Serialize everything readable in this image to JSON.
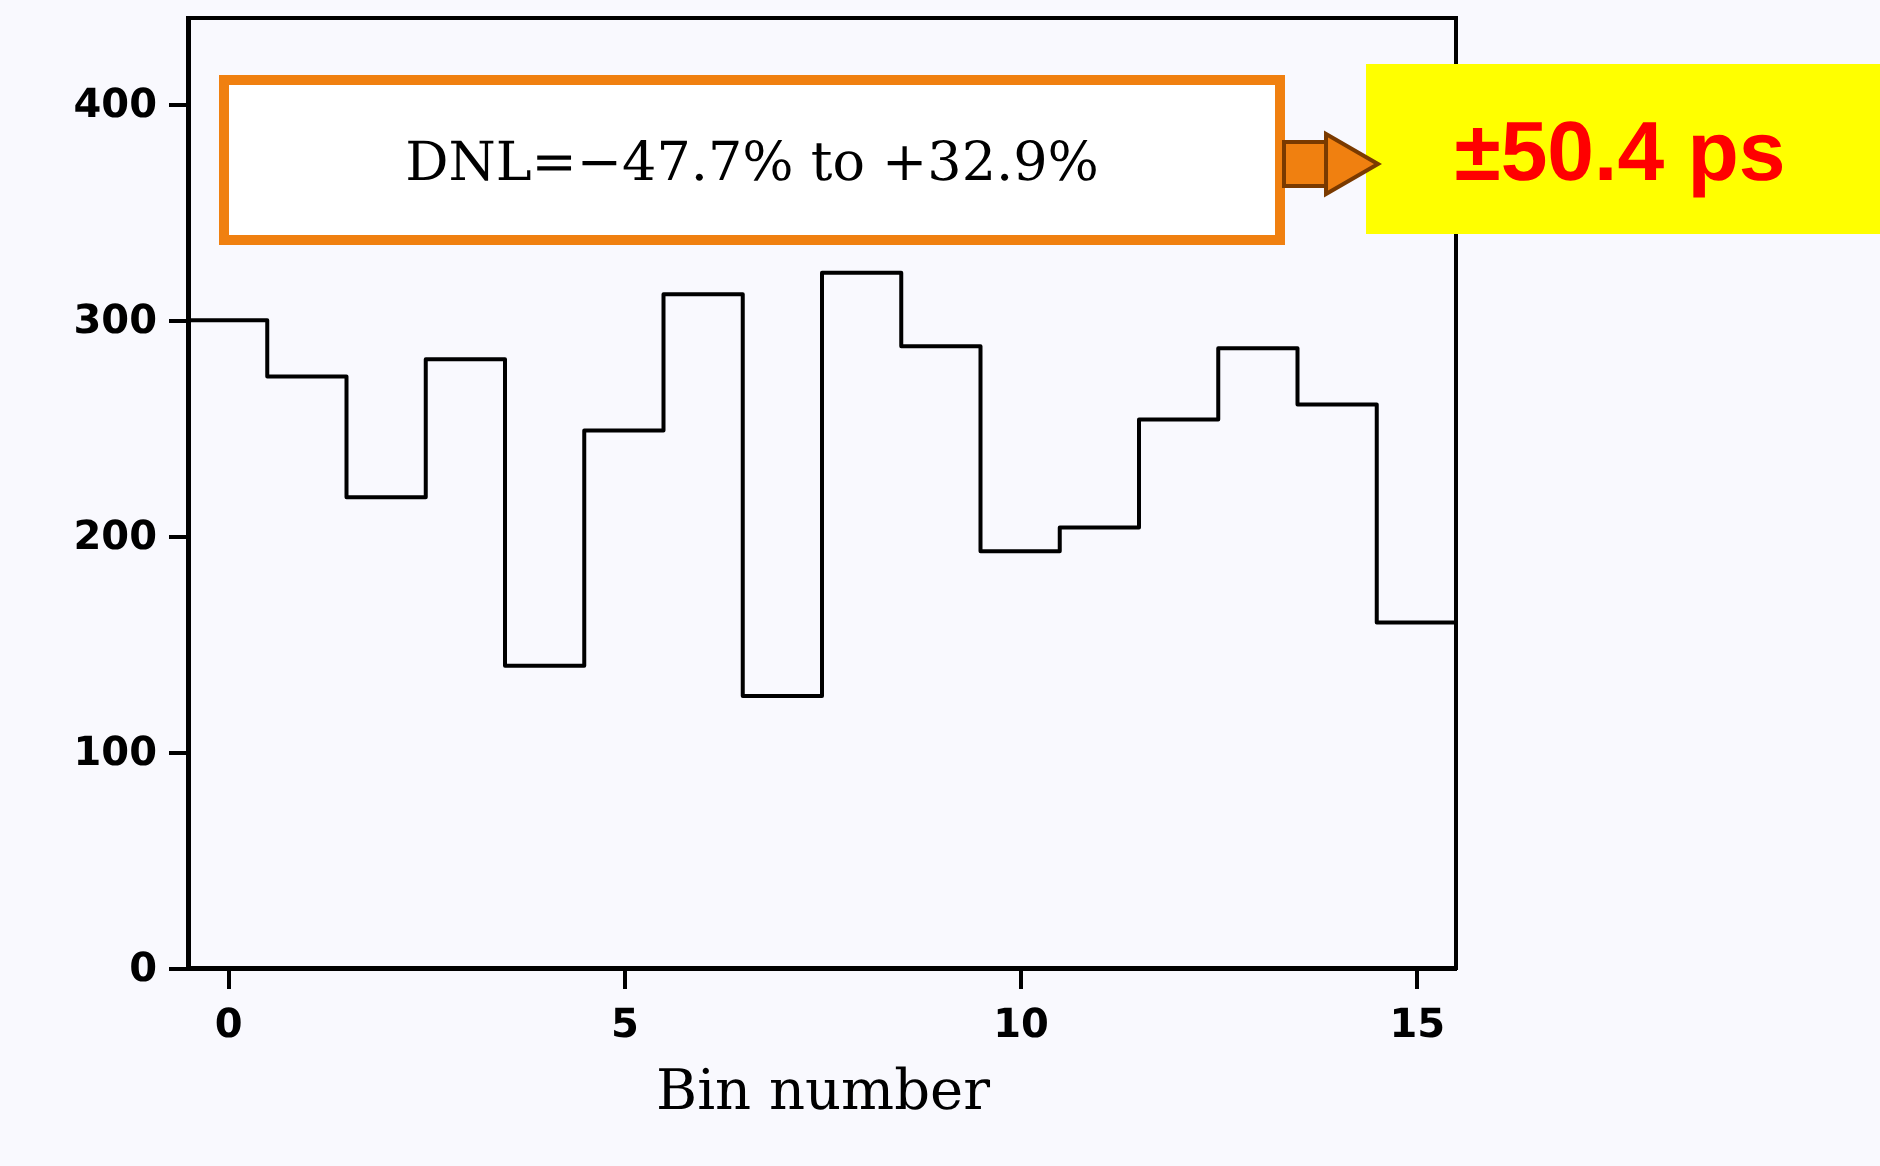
{
  "chart_data": {
    "type": "histogram",
    "xlabel": "Bin number",
    "bins": [
      -0.5,
      0.5,
      1.5,
      2.5,
      3.5,
      4.5,
      5.5,
      6.5,
      7.5,
      8.5,
      9.5,
      10.5,
      11.5,
      12.5,
      13.5,
      14.5,
      15.5
    ],
    "values": [
      300,
      274,
      218,
      282,
      140,
      249,
      312,
      126,
      322,
      288,
      193,
      204,
      254,
      287,
      261,
      160
    ],
    "color": "#000000",
    "xlim": [
      -0.5,
      15.5
    ],
    "xticks": [
      0,
      5,
      10,
      15
    ],
    "ylim": [
      0,
      440
    ],
    "yticks": [
      0,
      100,
      200,
      300,
      400
    ],
    "grid": false,
    "annotations": [
      "DNL=−47.7% to +32.9%",
      "±50.4 ps"
    ]
  }
}
